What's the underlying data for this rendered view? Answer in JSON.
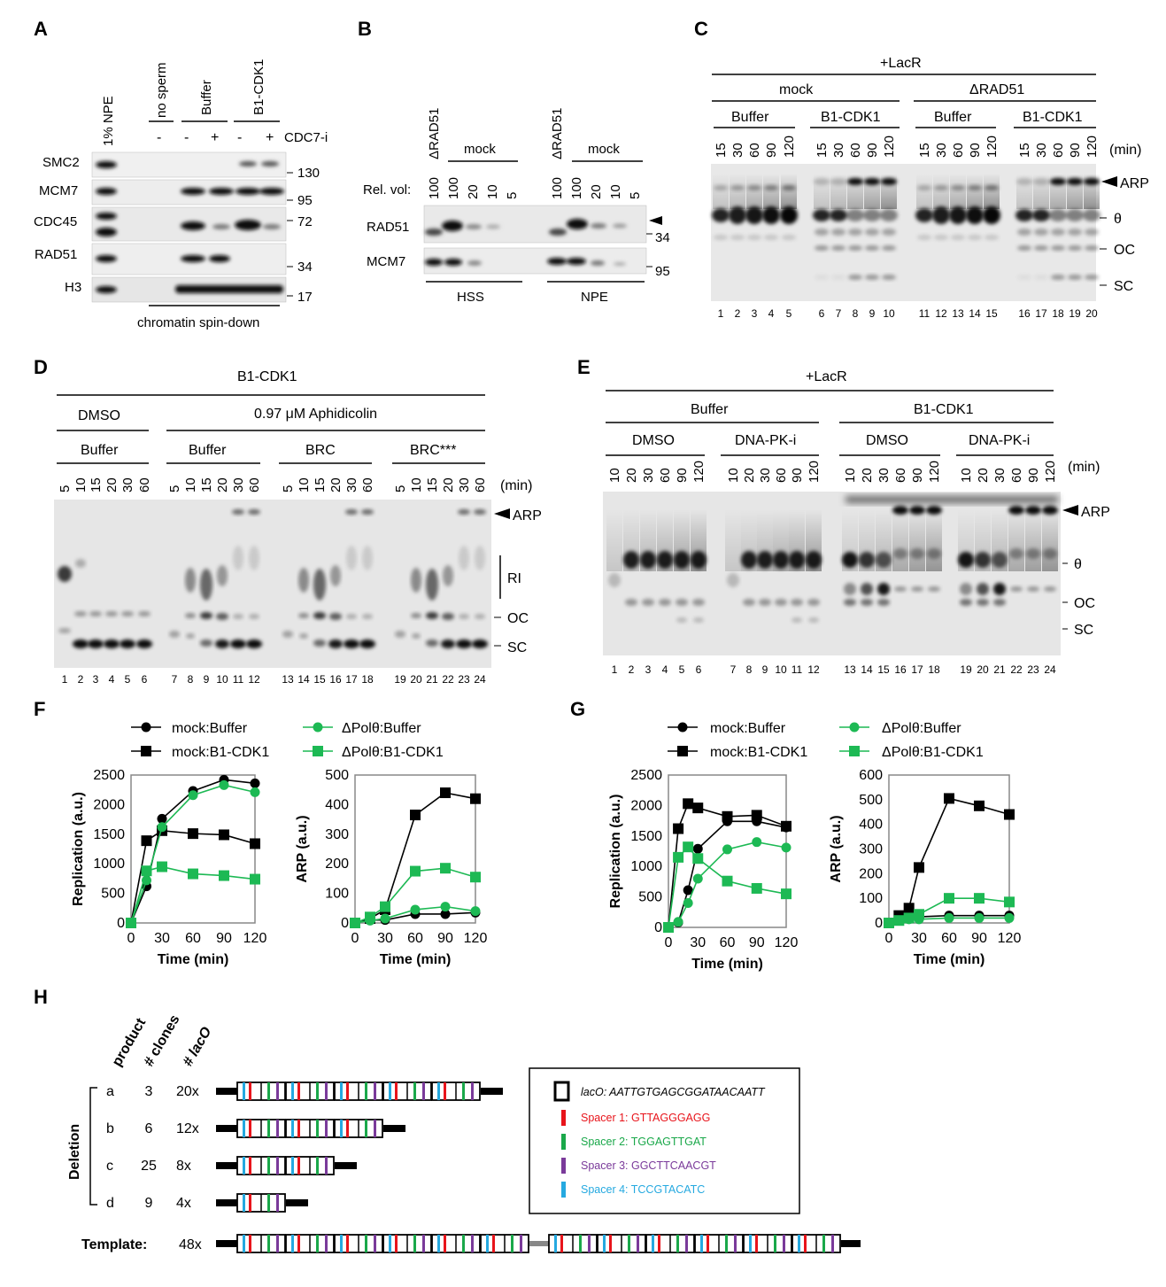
{
  "panels": {
    "A": {
      "letter": "A",
      "label_lane": "1% NPE",
      "col_labels": [
        "no sperm",
        "Buffer",
        "B1-CDK1"
      ],
      "signs": [
        "-",
        "-",
        "+",
        "-",
        "+"
      ],
      "inhibitor": "CDC7-i",
      "rows": [
        "SMC2",
        "MCM7",
        "CDC45",
        "RAD51",
        "H3"
      ],
      "mw": [
        "130",
        "95",
        "72",
        "34",
        "17"
      ],
      "footer": "chromatin spin-down"
    },
    "B": {
      "letter": "B",
      "top_labels": [
        "ΔRAD51",
        "ΔRAD51"
      ],
      "mock": "mock",
      "rel_label": "Rel. vol:",
      "vols": [
        "100",
        "100",
        "20",
        "10",
        "5",
        "100",
        "100",
        "20",
        "10",
        "5"
      ],
      "rows": [
        "RAD51",
        "MCM7"
      ],
      "mw": [
        "34",
        "95"
      ],
      "groups": [
        "HSS",
        "NPE"
      ]
    },
    "C": {
      "letter": "C",
      "header": "+LacR",
      "groups": [
        "mock",
        "ΔRAD51"
      ],
      "subgroups": [
        "Buffer",
        "B1-CDK1",
        "Buffer",
        "B1-CDK1"
      ],
      "times": [
        "15",
        "30",
        "60",
        "90",
        "120"
      ],
      "unit": "(min)",
      "bands": [
        "ARP",
        "θ",
        "OC",
        "SC"
      ],
      "lanes": [
        "1",
        "2",
        "3",
        "4",
        "5",
        "6",
        "7",
        "8",
        "9",
        "10",
        "11",
        "12",
        "13",
        "14",
        "15",
        "16",
        "17",
        "18",
        "19",
        "20"
      ]
    },
    "D": {
      "letter": "D",
      "header": "B1-CDK1",
      "cond1": "DMSO",
      "cond2": "0.97 μM Aphidicolin",
      "subgroups": [
        "Buffer",
        "Buffer",
        "BRC",
        "BRC***"
      ],
      "times": [
        "5",
        "10",
        "15",
        "20",
        "30",
        "60"
      ],
      "unit": "(min)",
      "bands": [
        "ARP",
        "RI",
        "OC",
        "SC"
      ],
      "lanes": [
        "1",
        "2",
        "3",
        "4",
        "5",
        "6",
        "7",
        "8",
        "9",
        "10",
        "11",
        "12",
        "13",
        "14",
        "15",
        "16",
        "17",
        "18",
        "19",
        "20",
        "21",
        "22",
        "23",
        "24"
      ]
    },
    "E": {
      "letter": "E",
      "header": "+LacR",
      "groups": [
        "Buffer",
        "B1-CDK1"
      ],
      "subgroups": [
        "DMSO",
        "DNA-PK-i",
        "DMSO",
        "DNA-PK-i"
      ],
      "times": [
        "10",
        "20",
        "30",
        "60",
        "90",
        "120"
      ],
      "unit": "(min)",
      "bands": [
        "ARP",
        "θ",
        "OC",
        "SC"
      ],
      "lanes": [
        "1",
        "2",
        "3",
        "4",
        "5",
        "6",
        "7",
        "8",
        "9",
        "10",
        "11",
        "12",
        "13",
        "14",
        "15",
        "16",
        "17",
        "18",
        "19",
        "20",
        "21",
        "22",
        "23",
        "24"
      ]
    },
    "F": {
      "letter": "F"
    },
    "G": {
      "letter": "G"
    },
    "H": {
      "letter": "H"
    }
  },
  "legend": [
    "mock:Buffer",
    "mock:B1-CDK1",
    "ΔPolθ:Buffer",
    "ΔPolθ:B1-CDK1"
  ],
  "colors": {
    "mock": "#000000",
    "polq": "#1db954",
    "red": "#e8141b",
    "green": "#1aa84a",
    "purple": "#7a3a9a",
    "blue": "#25a9e0"
  },
  "chart_data": [
    {
      "id": "F-left",
      "type": "line",
      "xlabel": "Time (min)",
      "ylabel": "Replication (a.u.)",
      "xlim": [
        0,
        120
      ],
      "ylim": [
        0,
        2500
      ],
      "xticks": [
        0,
        30,
        60,
        90,
        120
      ],
      "yticks": [
        0,
        500,
        1000,
        1500,
        2000,
        2500
      ],
      "series": [
        {
          "name": "mock:Buffer",
          "x": [
            0,
            15,
            30,
            60,
            90,
            120
          ],
          "y": [
            0,
            620,
            1760,
            2230,
            2420,
            2360
          ]
        },
        {
          "name": "mock:B1-CDK1",
          "x": [
            0,
            15,
            30,
            60,
            90,
            120
          ],
          "y": [
            0,
            1390,
            1560,
            1510,
            1490,
            1340
          ]
        },
        {
          "name": "ΔPolθ:Buffer",
          "x": [
            0,
            15,
            30,
            60,
            90,
            120
          ],
          "y": [
            0,
            720,
            1620,
            2160,
            2330,
            2210
          ]
        },
        {
          "name": "ΔPolθ:B1-CDK1",
          "x": [
            0,
            15,
            30,
            60,
            90,
            120
          ],
          "y": [
            0,
            880,
            950,
            830,
            800,
            740
          ]
        }
      ]
    },
    {
      "id": "F-right",
      "type": "line",
      "xlabel": "Time (min)",
      "ylabel": "ARP (a.u.)",
      "xlim": [
        0,
        120
      ],
      "ylim": [
        0,
        500
      ],
      "xticks": [
        0,
        30,
        60,
        90,
        120
      ],
      "yticks": [
        0,
        100,
        200,
        300,
        400,
        500
      ],
      "series": [
        {
          "name": "mock:Buffer",
          "x": [
            0,
            15,
            30,
            60,
            90,
            120
          ],
          "y": [
            0,
            10,
            10,
            30,
            30,
            35
          ]
        },
        {
          "name": "mock:B1-CDK1",
          "x": [
            0,
            15,
            30,
            60,
            90,
            120
          ],
          "y": [
            0,
            15,
            45,
            365,
            440,
            420
          ]
        },
        {
          "name": "ΔPolθ:Buffer",
          "x": [
            0,
            15,
            30,
            60,
            90,
            120
          ],
          "y": [
            0,
            8,
            15,
            45,
            55,
            40
          ]
        },
        {
          "name": "ΔPolθ:B1-CDK1",
          "x": [
            0,
            15,
            30,
            60,
            90,
            120
          ],
          "y": [
            0,
            20,
            55,
            175,
            185,
            155
          ]
        }
      ]
    },
    {
      "id": "G-left",
      "type": "line",
      "xlabel": "Time (min)",
      "ylabel": "Replication (a.u.)",
      "xlim": [
        0,
        120
      ],
      "ylim": [
        0,
        2500
      ],
      "xticks": [
        0,
        30,
        60,
        90,
        120
      ],
      "yticks": [
        0,
        500,
        1000,
        1500,
        2000,
        2500
      ],
      "series": [
        {
          "name": "mock:Buffer",
          "x": [
            0,
            10,
            20,
            30,
            60,
            90,
            120
          ],
          "y": [
            0,
            80,
            610,
            1290,
            1740,
            1740,
            1640
          ]
        },
        {
          "name": "mock:B1-CDK1",
          "x": [
            0,
            10,
            20,
            30,
            60,
            90,
            120
          ],
          "y": [
            0,
            1620,
            2030,
            1960,
            1820,
            1840,
            1660
          ]
        },
        {
          "name": "ΔPolθ:Buffer",
          "x": [
            0,
            10,
            20,
            30,
            60,
            90,
            120
          ],
          "y": [
            0,
            90,
            400,
            800,
            1280,
            1400,
            1310
          ]
        },
        {
          "name": "ΔPolθ:B1-CDK1",
          "x": [
            0,
            10,
            20,
            30,
            60,
            90,
            120
          ],
          "y": [
            0,
            1150,
            1320,
            1130,
            760,
            640,
            550
          ]
        }
      ]
    },
    {
      "id": "G-right",
      "type": "line",
      "xlabel": "Time (min)",
      "ylabel": "ARP (a.u.)",
      "xlim": [
        0,
        120
      ],
      "ylim": [
        0,
        600
      ],
      "xticks": [
        0,
        30,
        60,
        90,
        120
      ],
      "yticks": [
        0,
        100,
        200,
        300,
        400,
        500,
        600
      ],
      "series": [
        {
          "name": "mock:Buffer",
          "x": [
            0,
            10,
            20,
            30,
            60,
            90,
            120
          ],
          "y": [
            0,
            15,
            20,
            25,
            30,
            30,
            30
          ]
        },
        {
          "name": "mock:B1-CDK1",
          "x": [
            0,
            10,
            20,
            30,
            60,
            90,
            120
          ],
          "y": [
            0,
            30,
            60,
            225,
            505,
            475,
            440
          ]
        },
        {
          "name": "ΔPolθ:Buffer",
          "x": [
            0,
            10,
            20,
            30,
            60,
            90,
            120
          ],
          "y": [
            0,
            10,
            15,
            15,
            20,
            20,
            20
          ]
        },
        {
          "name": "ΔPolθ:B1-CDK1",
          "x": [
            0,
            10,
            20,
            30,
            60,
            90,
            120
          ],
          "y": [
            0,
            10,
            20,
            35,
            100,
            100,
            85
          ]
        }
      ]
    }
  ],
  "H": {
    "head": [
      "product",
      "# clones",
      "# lacO"
    ],
    "side": "Deletion",
    "rows": [
      {
        "p": "a",
        "c": "3",
        "l": "20x",
        "units": 5
      },
      {
        "p": "b",
        "c": "6",
        "l": "12x",
        "units": 3
      },
      {
        "p": "c",
        "c": "25",
        "l": "8x",
        "units": 2
      },
      {
        "p": "d",
        "c": "9",
        "l": "4x",
        "units": 1
      }
    ],
    "template_label": "Template:",
    "template_l": "48x",
    "key": {
      "lacO": "lacO: AATTGTGAGCGGATAACAATT",
      "spacers": [
        "Spacer 1: GTTAGGGAGG",
        "Spacer 2: TGGAGTTGAT",
        "Spacer 3: GGCTTCAACGT",
        "Spacer 4: TCCGTACATC"
      ]
    }
  }
}
